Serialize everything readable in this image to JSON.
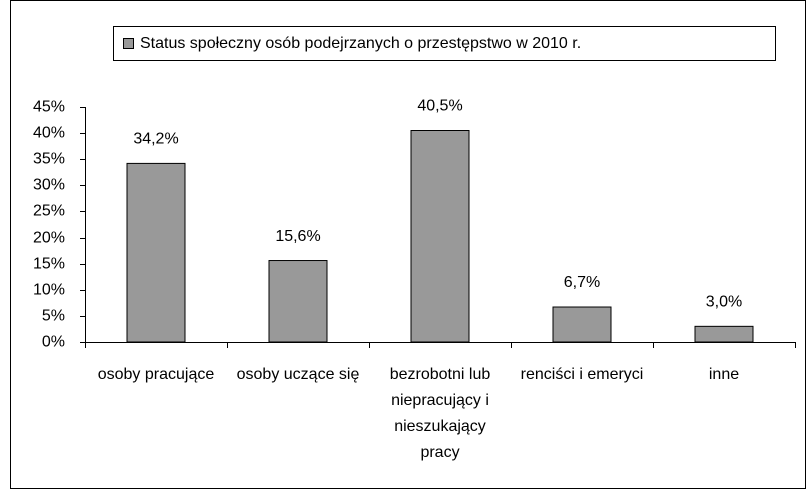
{
  "chart_data": {
    "type": "bar",
    "legend": "Status społeczny osób podejrzanych o przestępstwo w 2010 r.",
    "categories": [
      "osoby pracujące",
      "osoby uczące się",
      "bezrobotni lub niepracujący i nieszukający pracy",
      "renciści i emeryci",
      "inne"
    ],
    "values": [
      34.2,
      15.6,
      40.5,
      6.7,
      3.0
    ],
    "value_labels": [
      "34,2%",
      "15,6%",
      "40,5%",
      "6,7%",
      "3,0%"
    ],
    "color": "#999999",
    "ylim": [
      0,
      45
    ],
    "yticks": [
      {
        "value": 0,
        "label": "0%"
      },
      {
        "value": 5,
        "label": "5%"
      },
      {
        "value": 10,
        "label": "10%"
      },
      {
        "value": 15,
        "label": "15%"
      },
      {
        "value": 20,
        "label": "20%"
      },
      {
        "value": 25,
        "label": "25%"
      },
      {
        "value": 30,
        "label": "30%"
      },
      {
        "value": 35,
        "label": "35%"
      },
      {
        "value": 40,
        "label": "40%"
      },
      {
        "value": 45,
        "label": "45%"
      }
    ],
    "grid": false,
    "legend_position": "top"
  }
}
